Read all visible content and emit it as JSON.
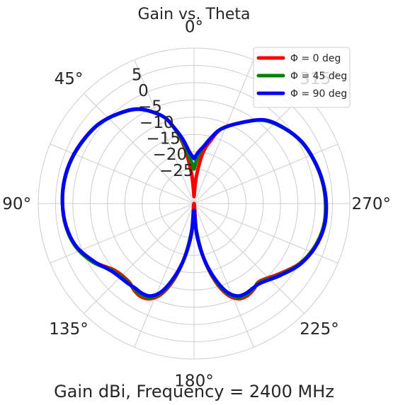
{
  "chart_data": {
    "type": "line",
    "subtype": "polar",
    "title": "Gain vs. Theta",
    "xlabel": "Gain dBi, Frequency = 2400 MHz",
    "angular_axis": {
      "zero_location": "top",
      "direction": "counterclockwise",
      "tick_labels": [
        "0°",
        "45°",
        "90°",
        "135°",
        "180°",
        "225°",
        "270°",
        "315°"
      ]
    },
    "radial_axis": {
      "range": [
        -35,
        10
      ],
      "tick_labels": [
        "5",
        "0",
        "−5",
        "−10",
        "−15",
        "−20",
        "−25"
      ],
      "tick_values": [
        5,
        0,
        -5,
        -10,
        -15,
        -20,
        -25
      ]
    },
    "grid": true,
    "legend_placement": "top-right",
    "x": [
      0,
      5,
      10,
      15,
      20,
      30,
      40,
      50,
      60,
      70,
      80,
      90,
      100,
      110,
      120,
      130,
      140,
      145,
      150,
      155,
      160,
      165,
      170,
      175,
      180,
      185,
      190,
      195,
      200,
      205,
      210,
      215,
      220,
      230,
      240,
      250,
      260,
      270,
      280,
      290,
      300,
      310,
      320,
      330,
      340,
      345,
      350,
      355,
      360
    ],
    "series": [
      {
        "name": "Φ = 0 deg",
        "color": "#ff0000",
        "values": [
          -33,
          -26,
          -18,
          -12,
          -8,
          -3.5,
          -1,
          0.8,
          1.8,
          2.6,
          3.0,
          3.0,
          2.6,
          1.3,
          -1.4,
          -5.0,
          -5.6,
          -4.6,
          -4.0,
          -4.6,
          -7.0,
          -12.0,
          -19.0,
          -27.0,
          -35,
          -27.0,
          -19.0,
          -12.0,
          -7.0,
          -4.6,
          -4.2,
          -4.8,
          -5.6,
          -3.2,
          0.0,
          2.0,
          3.0,
          3.0,
          2.6,
          1.8,
          0.8,
          -1.0,
          -3.5,
          -8,
          -12,
          -16,
          -20,
          -27,
          -33
        ]
      },
      {
        "name": "Φ = 45 deg",
        "color": "#008000",
        "values": [
          -25,
          -22,
          -17,
          -12,
          -8,
          -3.5,
          -1.1,
          0.8,
          1.8,
          2.6,
          3.0,
          3.0,
          2.6,
          1.4,
          -1.2,
          -4.6,
          -5.3,
          -4.8,
          -4.5,
          -5.0,
          -7.5,
          -12.5,
          -19.0,
          -27.0,
          -33,
          -27.0,
          -19.0,
          -12.5,
          -7.5,
          -5.0,
          -4.6,
          -5.0,
          -5.3,
          -2.8,
          0.1,
          2.0,
          3.0,
          3.0,
          2.6,
          1.8,
          0.8,
          -1.1,
          -3.6,
          -8,
          -12,
          -15,
          -18,
          -21,
          -25
        ]
      },
      {
        "name": "Φ = 90 deg",
        "color": "#0000ff",
        "values": [
          -22,
          -20,
          -16,
          -12,
          -8,
          -3.4,
          -1.0,
          0.9,
          1.9,
          2.7,
          3.1,
          3.0,
          2.5,
          1.2,
          -1.6,
          -4.3,
          -5.0,
          -5.2,
          -5.0,
          -5.5,
          -8.0,
          -13.0,
          -19.0,
          -26.0,
          -33,
          -26.0,
          -19.0,
          -13.0,
          -8.0,
          -5.5,
          -5.0,
          -5.2,
          -5.0,
          -2.6,
          0.3,
          2.2,
          3.2,
          3.2,
          2.7,
          1.9,
          0.9,
          -1.0,
          -3.4,
          -8,
          -12,
          -15,
          -18,
          -20,
          -22
        ]
      }
    ]
  }
}
